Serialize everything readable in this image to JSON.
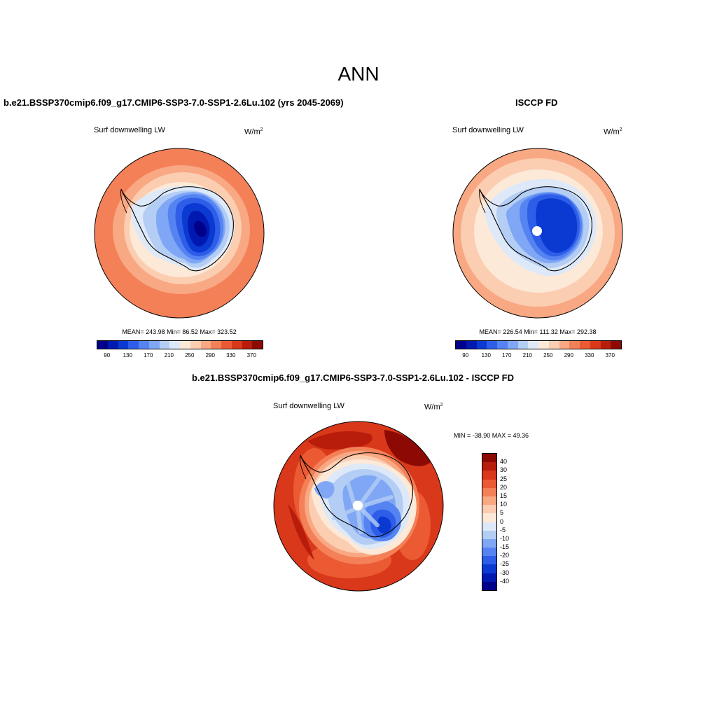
{
  "page": {
    "title": "ANN"
  },
  "panels": {
    "model": {
      "title": "b.e21.BSSP370cmip6.f09_g17.CMIP6-SSP3-7.0-SSP1-2.6Lu.102 (yrs 2045-2069)",
      "variable": "Surf downwelling LW",
      "units_base": "W/m",
      "units_exp": "2",
      "stats": "MEAN= 243.98  Min=  86.52  Max= 323.52"
    },
    "obs": {
      "title": "ISCCP FD",
      "variable": "Surf downwelling LW",
      "units_base": "W/m",
      "units_exp": "2",
      "stats": "MEAN= 226.54  Min= 111.32  Max= 292.38"
    },
    "diff": {
      "title": "b.e21.BSSP370cmip6.f09_g17.CMIP6-SSP3-7.0-SSP1-2.6Lu.102 - ISCCP FD",
      "variable": "Surf downwelling LW",
      "units_base": "W/m",
      "units_exp": "2",
      "stats": "MIN = -38.90 MAX =  49.36"
    }
  },
  "colorbar_abs": {
    "colors": [
      "#00008b",
      "#0019b0",
      "#0a3ad2",
      "#2e5ee8",
      "#5584f2",
      "#7fa7f5",
      "#b4cdf4",
      "#dde9f8",
      "#fde9d8",
      "#fbcdb1",
      "#f8a883",
      "#f48058",
      "#eb5a33",
      "#d9381a",
      "#b81d0b",
      "#8c0a03"
    ],
    "ticks": [
      "90",
      "130",
      "170",
      "210",
      "250",
      "290",
      "330",
      "370"
    ]
  },
  "colorbar_diff": {
    "colors": [
      "#8c0a03",
      "#b81d0b",
      "#d9381a",
      "#eb5a33",
      "#f48058",
      "#f8a883",
      "#fbcdb1",
      "#fde9d8",
      "#dde9f8",
      "#b4cdf4",
      "#7fa7f5",
      "#5584f2",
      "#2e5ee8",
      "#0a3ad2",
      "#0019b0",
      "#00008b"
    ],
    "ticks": [
      "40",
      "30",
      "25",
      "20",
      "15",
      "10",
      "5",
      "0",
      "-5",
      "-10",
      "-15",
      "-20",
      "-25",
      "-30",
      "-40"
    ]
  },
  "chart_data": [
    {
      "type": "heatmap",
      "title": "b.e21.BSSP370cmip6.f09_g17.CMIP6-SSP3-7.0-SSP1-2.6Lu.102 (yrs 2045-2069)",
      "variable": "Surf downwelling LW",
      "units": "W/m2",
      "projection": "south polar stereographic",
      "mean": 243.98,
      "min": 86.52,
      "max": 323.52,
      "levels": [
        90,
        130,
        170,
        210,
        250,
        290,
        330,
        370
      ]
    },
    {
      "type": "heatmap",
      "title": "ISCCP FD",
      "variable": "Surf downwelling LW",
      "units": "W/m2",
      "projection": "south polar stereographic",
      "mean": 226.54,
      "min": 111.32,
      "max": 292.38,
      "levels": [
        90,
        130,
        170,
        210,
        250,
        290,
        330,
        370
      ]
    },
    {
      "type": "heatmap",
      "title": "b.e21.BSSP370cmip6.f09_g17.CMIP6-SSP3-7.0-SSP1-2.6Lu.102 - ISCCP FD",
      "variable": "Surf downwelling LW",
      "units": "W/m2",
      "projection": "south polar stereographic",
      "min": -38.9,
      "max": 49.36,
      "levels": [
        -40,
        -30,
        -25,
        -20,
        -15,
        -10,
        -5,
        0,
        5,
        10,
        15,
        20,
        25,
        30,
        40
      ]
    }
  ]
}
